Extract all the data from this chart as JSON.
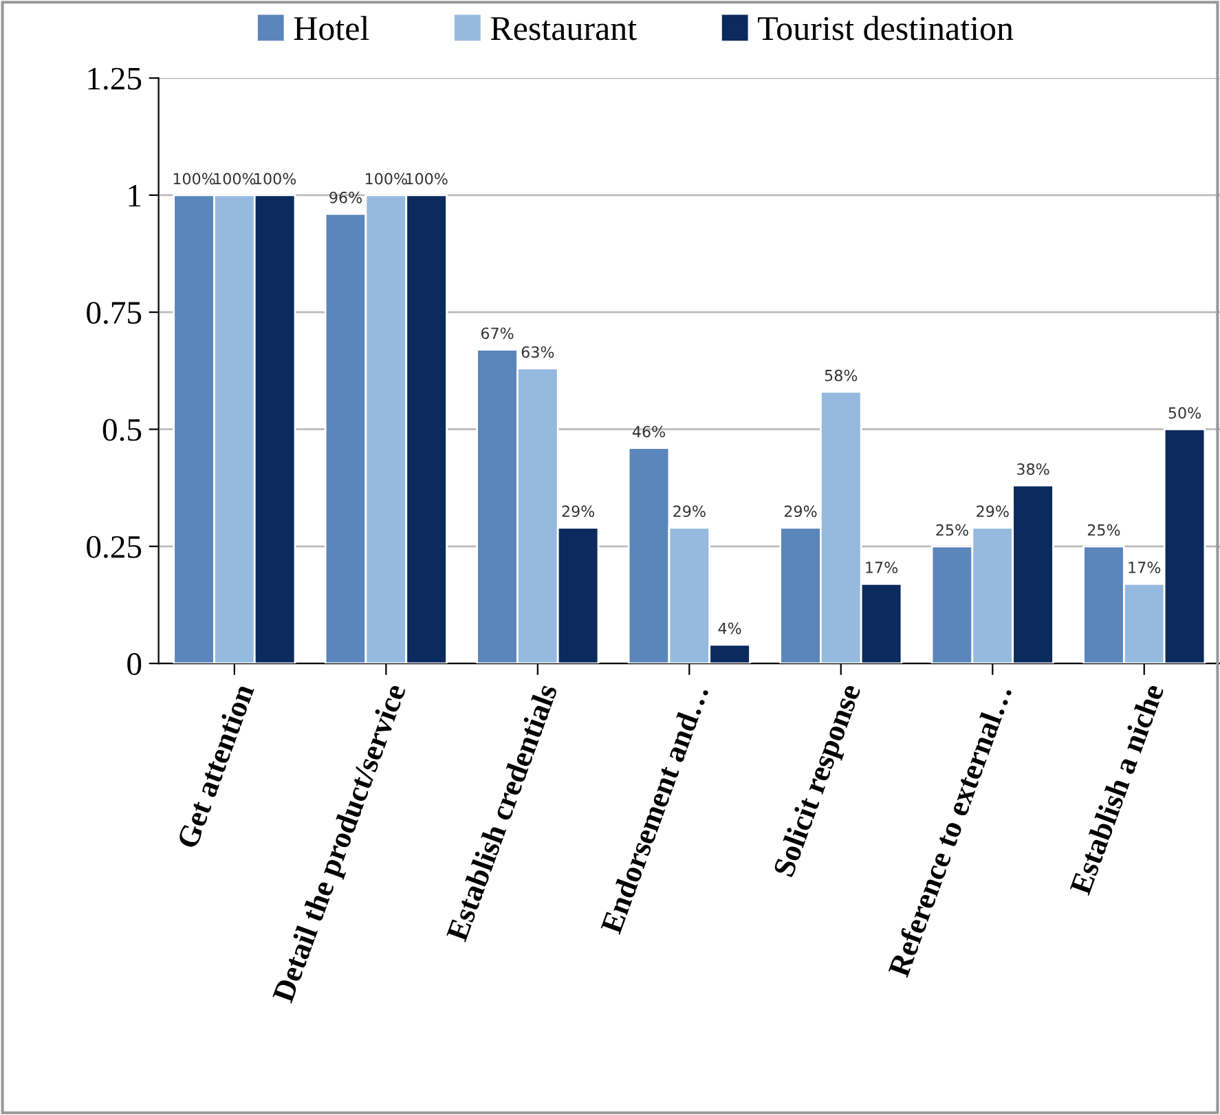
{
  "chart_data": {
    "type": "bar",
    "categories": [
      "Get attention",
      "Detail the product/service",
      "Establish credentials",
      "Endorsement and…",
      "Solicit response",
      "Reference to external…",
      "Establish a niche"
    ],
    "series": [
      {
        "name": "Hotel",
        "color": "#5b86bb",
        "values": [
          1,
          0.96,
          0.67,
          0.46,
          0.29,
          0.25,
          0.25
        ],
        "value_labels": [
          "100%",
          "96%",
          "67%",
          "46%",
          "29%",
          "25%",
          "25%"
        ]
      },
      {
        "name": "Restaurant",
        "color": "#96badf",
        "values": [
          1,
          1,
          0.63,
          0.29,
          0.58,
          0.29,
          0.17
        ],
        "value_labels": [
          "100%",
          "100%",
          "63%",
          "29%",
          "58%",
          "29%",
          "17%"
        ]
      },
      {
        "name": "Tourist destination",
        "color": "#0b2a5e",
        "values": [
          1,
          1,
          0.29,
          0.04,
          0.17,
          0.38,
          0.5
        ],
        "value_labels": [
          "100%",
          "100%",
          "29%",
          "4%",
          "17%",
          "38%",
          "50%"
        ]
      }
    ],
    "ylim": [
      0,
      1.25
    ],
    "yticks": [
      0,
      {
        "value": 0.25,
        "label": "0.25"
      },
      {
        "value": 0.5,
        "label": "0.5"
      },
      {
        "value": 0.75,
        "label": "0.75"
      },
      1,
      {
        "value": 1.25,
        "label": "1.25"
      }
    ],
    "grid": "y",
    "legend": "top"
  }
}
